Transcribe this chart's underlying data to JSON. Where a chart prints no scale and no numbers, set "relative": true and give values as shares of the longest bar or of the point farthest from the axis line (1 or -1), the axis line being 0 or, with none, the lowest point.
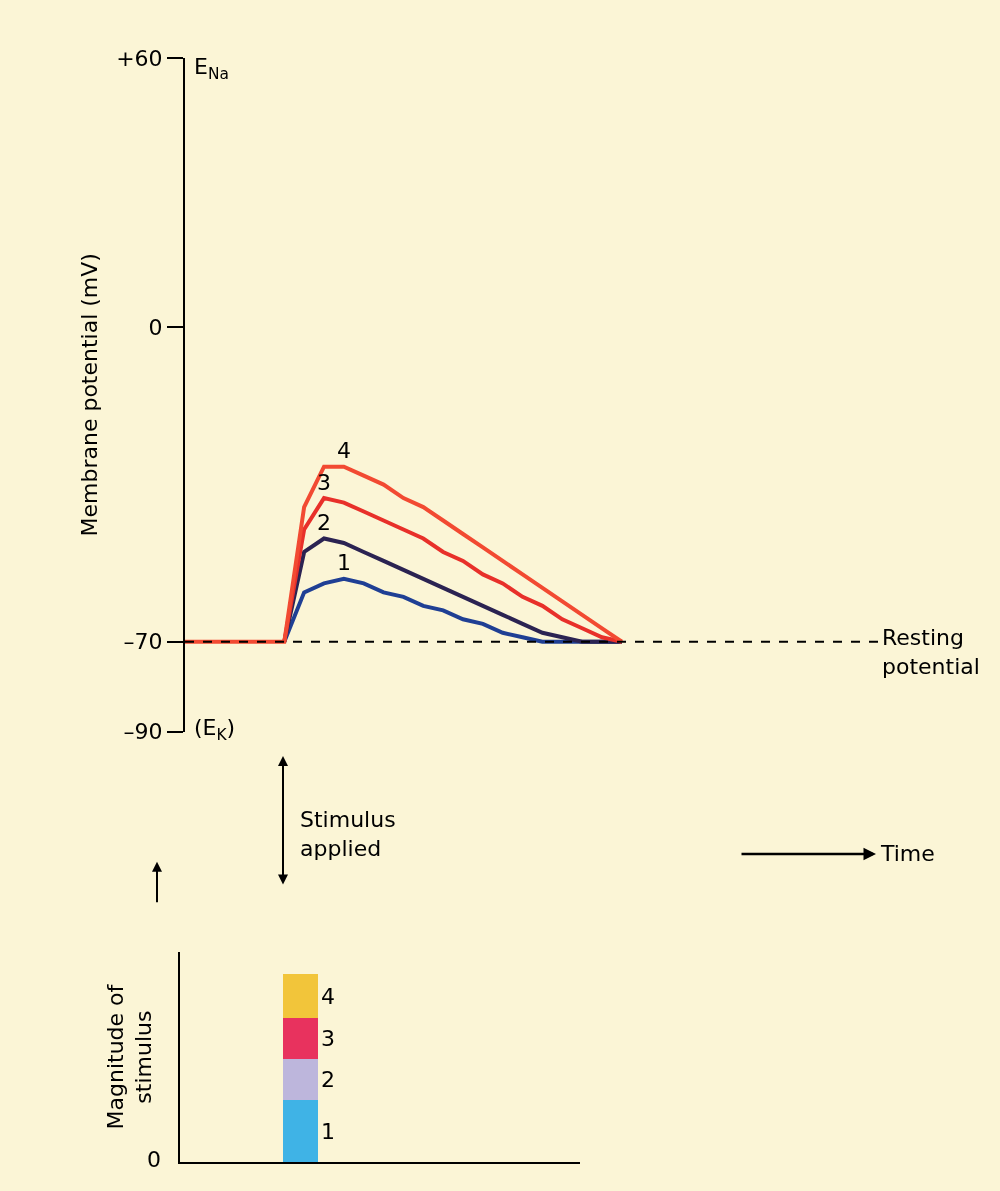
{
  "chart_data": [
    {
      "type": "line",
      "ylabel": "Membrane potential (mV)",
      "categories": [
        null,
        null,
        null,
        null,
        null,
        null,
        null,
        null,
        null,
        null,
        null,
        null,
        null,
        null,
        null,
        null,
        null,
        null,
        null,
        null,
        null,
        null,
        null,
        null,
        null,
        null,
        null,
        null,
        null,
        null,
        null,
        null,
        null,
        null,
        null,
        null
      ],
      "series": [
        {
          "name": "1",
          "color": "#1f3f94",
          "values": [
            null,
            null,
            null,
            null,
            null,
            -70,
            -59,
            -57,
            -56,
            -57,
            -59,
            -60,
            -62,
            -63,
            -65,
            -66,
            -68,
            -69,
            -70,
            -70,
            -70,
            -70,
            -70,
            null,
            null,
            null,
            null,
            null,
            null,
            null,
            null,
            null,
            null,
            null,
            null,
            null
          ]
        },
        {
          "name": "2",
          "color": "#2b2352",
          "values": [
            null,
            null,
            null,
            null,
            null,
            -70,
            -50,
            -47,
            -48,
            -50,
            -52,
            -54,
            -56,
            -58,
            -60,
            -62,
            -64,
            -66,
            -68,
            -69,
            -70,
            -70,
            -70,
            null,
            null,
            null,
            null,
            null,
            null,
            null,
            null,
            null,
            null,
            null,
            null,
            null
          ]
        },
        {
          "name": "3",
          "color": "#e8302a",
          "values": [
            null,
            null,
            null,
            null,
            null,
            -70,
            -45,
            -38,
            -39,
            -41,
            -43,
            -45,
            -47,
            -50,
            -52,
            -55,
            -57,
            -60,
            -62,
            -65,
            -67,
            -69,
            -70,
            null,
            null,
            null,
            null,
            null,
            null,
            null,
            null,
            null,
            null,
            null,
            null,
            null
          ]
        },
        {
          "name": "4",
          "color": "#f24a32",
          "values": [
            -70,
            -70,
            -70,
            -70,
            -70,
            -70,
            -40,
            -31,
            -31,
            -33,
            -35,
            -38,
            -40,
            -43,
            -46,
            -49,
            -52,
            -55,
            -58,
            -61,
            -64,
            -67,
            -70,
            null,
            null,
            null,
            null,
            null,
            null,
            null,
            null,
            null,
            null,
            null,
            null,
            null
          ]
        }
      ],
      "ylim": [
        -90,
        60
      ],
      "yticks": [
        {
          "value": 60,
          "label": "+60"
        },
        0,
        {
          "value": -70,
          "label": "–70"
        },
        {
          "value": -90,
          "label": "–90"
        }
      ],
      "tick_labels": "y",
      "grid": false,
      "marker": "none",
      "line_style": "solid",
      "ref_lines": [
        {
          "axis": "y",
          "value": -70,
          "label": "Resting\npotential",
          "color": "#000000",
          "line_style": "dashed"
        }
      ],
      "annotations": [
        "E$_{Na}$",
        "(E$_{K}$)",
        "Stimulus\napplied",
        "Time"
      ]
    },
    {
      "type": "bar",
      "stacked": true,
      "relative": true,
      "ylabel": "Magnitude of\nstimulus",
      "categories": [
        null
      ],
      "series": [
        {
          "name": "1",
          "color": "#3fb3e6",
          "values": [
            0.33
          ]
        },
        {
          "name": "2",
          "color": "#bdb6dc",
          "values": [
            0.22
          ]
        },
        {
          "name": "3",
          "color": "#e8325e",
          "values": [
            0.22
          ]
        },
        {
          "name": "4",
          "color": "#f2c53a",
          "values": [
            0.23
          ]
        }
      ],
      "tick_labels": false,
      "grid": false,
      "annotations": [
        "0"
      ]
    }
  ]
}
